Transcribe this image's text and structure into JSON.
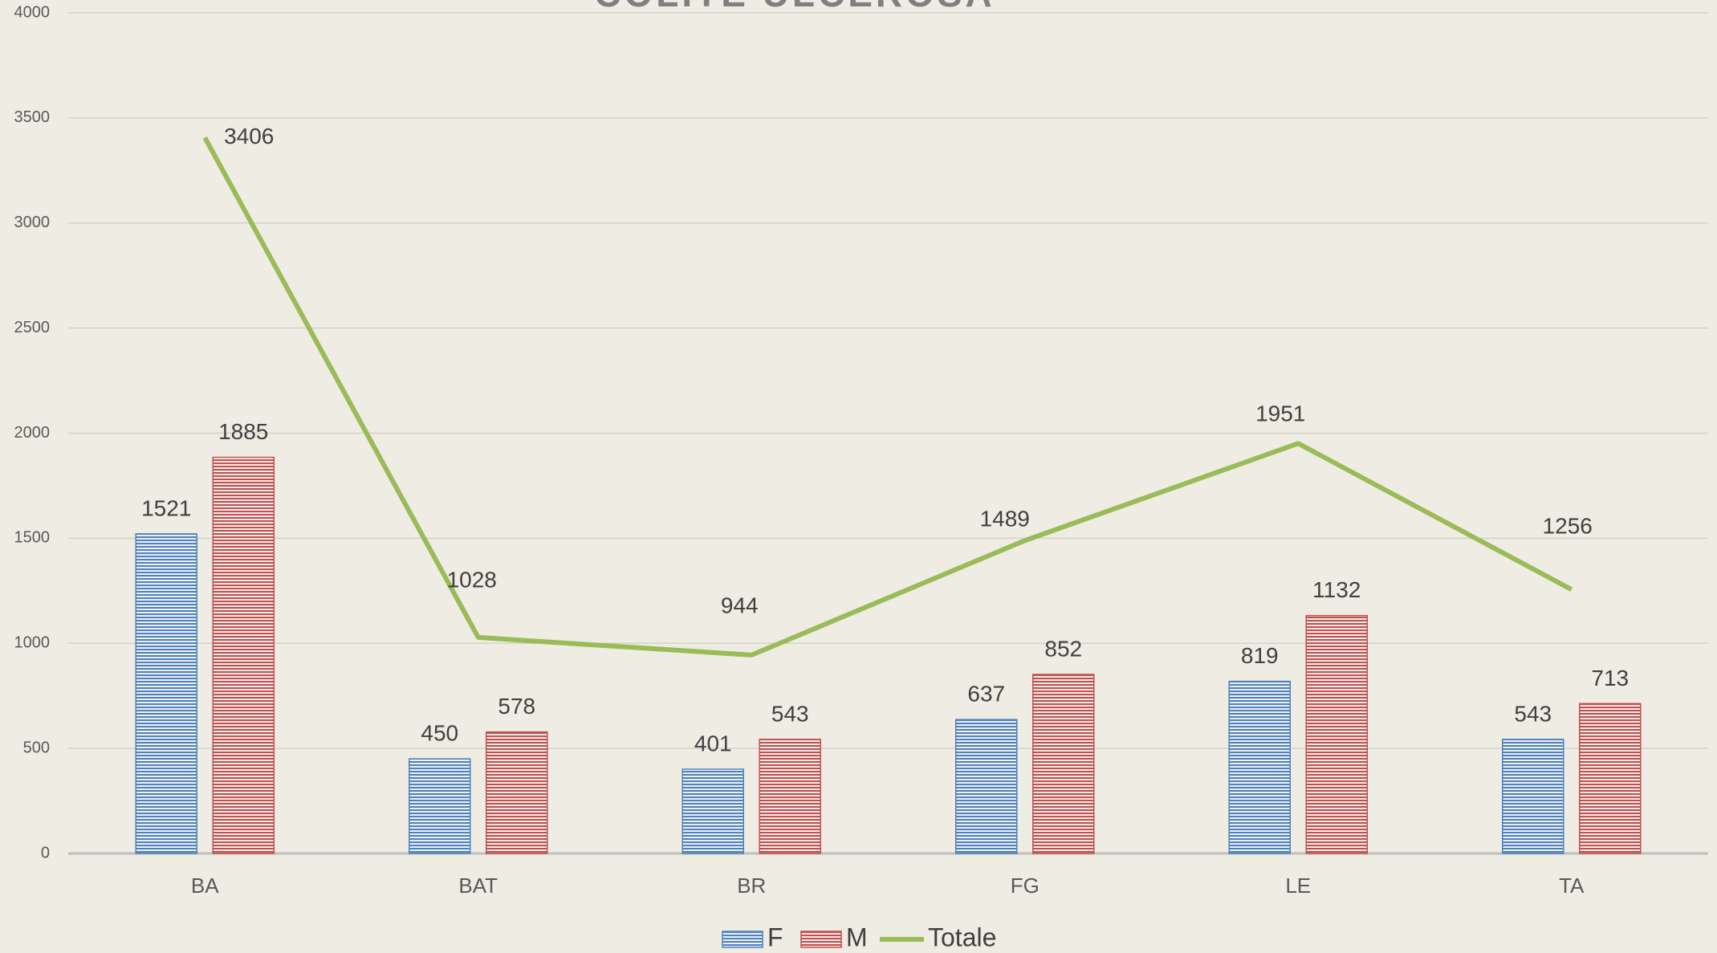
{
  "chart_data": {
    "type": "bar",
    "title": "COLITE ULCEROSA",
    "categories": [
      "BA",
      "BAT",
      "BR",
      "FG",
      "LE",
      "TA"
    ],
    "series": [
      {
        "name": "F",
        "color": "#4f81bd",
        "values": [
          1521,
          450,
          401,
          637,
          819,
          543
        ]
      },
      {
        "name": "M",
        "color": "#c0504d",
        "values": [
          1885,
          578,
          543,
          852,
          1132,
          713
        ]
      },
      {
        "name": "Totale",
        "type": "line",
        "color": "#9bbb59",
        "values": [
          3406,
          1028,
          944,
          1489,
          1951,
          1256
        ]
      }
    ],
    "ylim": [
      0,
      4000
    ],
    "yticks": [
      0,
      500,
      1000,
      1500,
      2000,
      2500,
      3000,
      3500,
      4000
    ],
    "grid": true,
    "legend": "bottom"
  }
}
